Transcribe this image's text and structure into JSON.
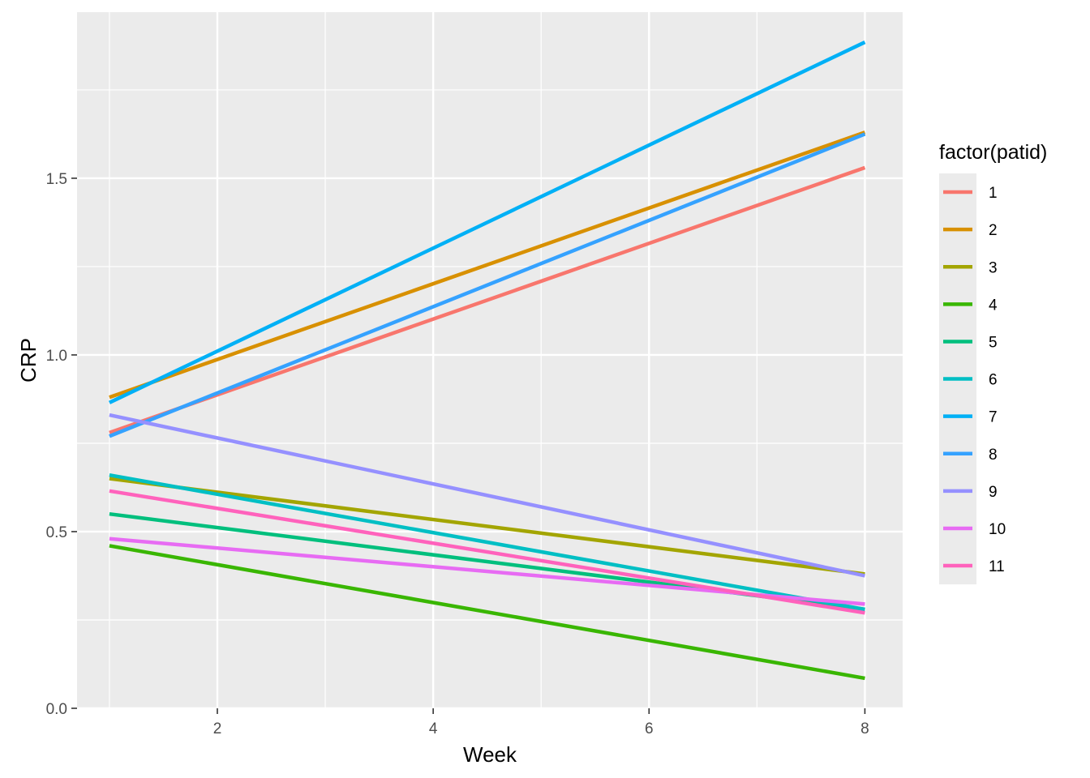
{
  "chart_data": {
    "type": "line",
    "xlabel": "Week",
    "ylabel": "CRP",
    "xlim": [
      0.7,
      8.35
    ],
    "ylim": [
      -0.0,
      1.97
    ],
    "x_ticks": [
      2,
      4,
      6,
      8
    ],
    "x_tick_labels": [
      "2",
      "4",
      "6",
      "8"
    ],
    "y_ticks": [
      0.0,
      0.5,
      1.0,
      1.5
    ],
    "y_tick_labels": [
      "0.0",
      "0.5",
      "1.0",
      "1.5"
    ],
    "x_minor": [
      1,
      3,
      5,
      7
    ],
    "y_minor": [
      0.25,
      0.75,
      1.25,
      1.75
    ],
    "grid": true,
    "legend": {
      "title": "factor(patid)",
      "position": "right"
    },
    "series": [
      {
        "name": "1",
        "color": "#F8766D",
        "x": [
          1,
          8
        ],
        "y": [
          0.78,
          1.53
        ]
      },
      {
        "name": "2",
        "color": "#D89000",
        "x": [
          1,
          8
        ],
        "y": [
          0.88,
          1.63
        ]
      },
      {
        "name": "3",
        "color": "#A3A500",
        "x": [
          1,
          8
        ],
        "y": [
          0.65,
          0.38
        ]
      },
      {
        "name": "4",
        "color": "#39B600",
        "x": [
          1,
          8
        ],
        "y": [
          0.46,
          0.085
        ]
      },
      {
        "name": "5",
        "color": "#00BF7D",
        "x": [
          1,
          8
        ],
        "y": [
          0.55,
          0.28
        ]
      },
      {
        "name": "6",
        "color": "#00BFC4",
        "x": [
          1,
          8
        ],
        "y": [
          0.66,
          0.28
        ]
      },
      {
        "name": "7",
        "color": "#00B0F6",
        "x": [
          1,
          8
        ],
        "y": [
          0.865,
          1.885
        ]
      },
      {
        "name": "8",
        "color": "#35A2FF",
        "x": [
          1,
          8
        ],
        "y": [
          0.77,
          1.625
        ]
      },
      {
        "name": "9",
        "color": "#9590FF",
        "x": [
          1,
          8
        ],
        "y": [
          0.83,
          0.375
        ]
      },
      {
        "name": "10",
        "color": "#E76BF3",
        "x": [
          1,
          8
        ],
        "y": [
          0.48,
          0.295
        ]
      },
      {
        "name": "11",
        "color": "#FF62BC",
        "x": [
          1,
          8
        ],
        "y": [
          0.615,
          0.27
        ]
      }
    ]
  }
}
